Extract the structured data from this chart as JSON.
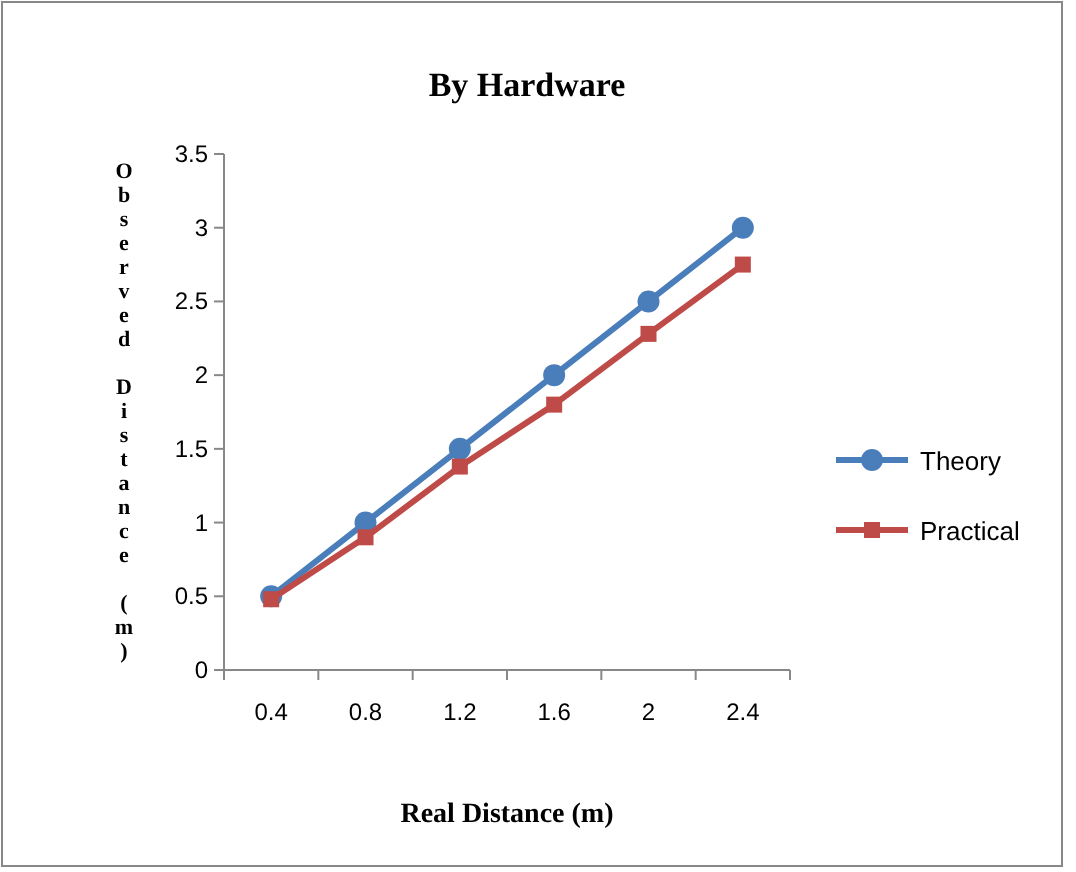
{
  "chart_data": {
    "type": "line",
    "title": "By Hardware",
    "xlabel": "Real Distance (m)",
    "ylabel": "Observed Distance (m)",
    "categories": [
      "0.4",
      "0.8",
      "1.2",
      "1.6",
      "2",
      "2.4"
    ],
    "series": [
      {
        "name": "Theory",
        "color": "#4a7ebb",
        "marker": "circle",
        "values": [
          0.5,
          1,
          1.5,
          2,
          2.5,
          3
        ]
      },
      {
        "name": "Practical",
        "color": "#be4b48",
        "marker": "square",
        "values": [
          0.48,
          0.9,
          1.38,
          1.8,
          2.28,
          2.75
        ]
      }
    ],
    "ylim": [
      0,
      3.5
    ],
    "yticks": [
      0,
      0.5,
      1,
      1.5,
      2,
      2.5,
      3,
      3.5
    ],
    "legend": "right",
    "grid": false
  }
}
